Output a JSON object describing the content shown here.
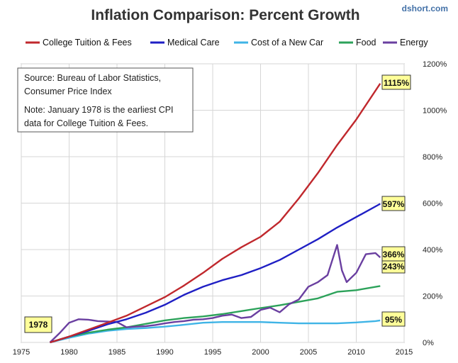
{
  "chart_data": {
    "type": "line",
    "title": "Inflation Comparison: Percent Growth",
    "brand": "dshort.com",
    "xlim": [
      1975,
      2015
    ],
    "ylim": [
      0,
      1200
    ],
    "x_ticks": [
      1975,
      1980,
      1985,
      1990,
      1995,
      2000,
      2005,
      2010,
      2015
    ],
    "y_ticks": [
      0,
      200,
      400,
      600,
      800,
      1000,
      1200
    ],
    "y_tick_labels": [
      "0%",
      "200%",
      "400%",
      "600%",
      "800%",
      "1000%",
      "1200%"
    ],
    "grid": true,
    "legend_position": "top",
    "note_lines": [
      "Source: Bureau of Labor Statistics,",
      "Consumer Price Index",
      "Note: January 1978  is the earliest CPI",
      "data for College Tuition & Fees."
    ],
    "start_label": "1978",
    "series": [
      {
        "name": "College Tuition & Fees",
        "color": "#c0282d",
        "end_label": "1115%",
        "x": [
          1978,
          1980,
          1982,
          1984,
          1986,
          1988,
          1990,
          1992,
          1994,
          1996,
          1998,
          2000,
          2002,
          2004,
          2006,
          2008,
          2010,
          2012.5
        ],
        "y": [
          0,
          25,
          55,
          85,
          115,
          155,
          195,
          245,
          300,
          360,
          410,
          455,
          520,
          620,
          730,
          850,
          960,
          1115
        ]
      },
      {
        "name": "Medical Care",
        "color": "#1f1fc4",
        "end_label": "597%",
        "x": [
          1978,
          1980,
          1982,
          1984,
          1986,
          1988,
          1990,
          1992,
          1994,
          1996,
          1998,
          2000,
          2002,
          2004,
          2006,
          2008,
          2010,
          2012.5
        ],
        "y": [
          0,
          25,
          50,
          78,
          100,
          128,
          162,
          205,
          240,
          268,
          290,
          320,
          355,
          400,
          445,
          495,
          540,
          597
        ]
      },
      {
        "name": "Cost of a New Car",
        "color": "#3fb4e6",
        "end_label": "95%",
        "x": [
          1978,
          1980,
          1982,
          1984,
          1986,
          1988,
          1990,
          1992,
          1994,
          1996,
          1998,
          2000,
          2002,
          2004,
          2006,
          2008,
          2010,
          2012,
          2012.5
        ],
        "y": [
          0,
          20,
          38,
          50,
          58,
          62,
          68,
          76,
          85,
          88,
          88,
          88,
          85,
          82,
          82,
          82,
          86,
          92,
          95
        ]
      },
      {
        "name": "Food",
        "color": "#2ca25a",
        "end_label": "243%",
        "x": [
          1978,
          1980,
          1982,
          1984,
          1986,
          1988,
          1990,
          1992,
          1994,
          1996,
          1998,
          2000,
          2002,
          2004,
          2006,
          2008,
          2010,
          2012.5
        ],
        "y": [
          0,
          25,
          42,
          55,
          65,
          80,
          95,
          105,
          112,
          122,
          135,
          148,
          160,
          175,
          190,
          218,
          225,
          243
        ]
      },
      {
        "name": "Energy",
        "color": "#6a3fa0",
        "end_label": "366%",
        "x": [
          1978,
          1979,
          1980,
          1981,
          1982,
          1983,
          1984,
          1985,
          1986,
          1987,
          1988,
          1989,
          1990,
          1991,
          1992,
          1993,
          1994,
          1995,
          1996,
          1997,
          1998,
          1999,
          2000,
          2001,
          2002,
          2003,
          2004,
          2005,
          2006,
          2007,
          2008,
          2008.5,
          2009,
          2010,
          2011,
          2012,
          2012.5
        ],
        "y": [
          0,
          40,
          85,
          100,
          98,
          92,
          90,
          88,
          65,
          68,
          70,
          75,
          82,
          88,
          92,
          98,
          100,
          105,
          115,
          120,
          105,
          110,
          140,
          150,
          130,
          165,
          185,
          240,
          260,
          290,
          420,
          310,
          260,
          300,
          380,
          385,
          366
        ]
      }
    ]
  }
}
